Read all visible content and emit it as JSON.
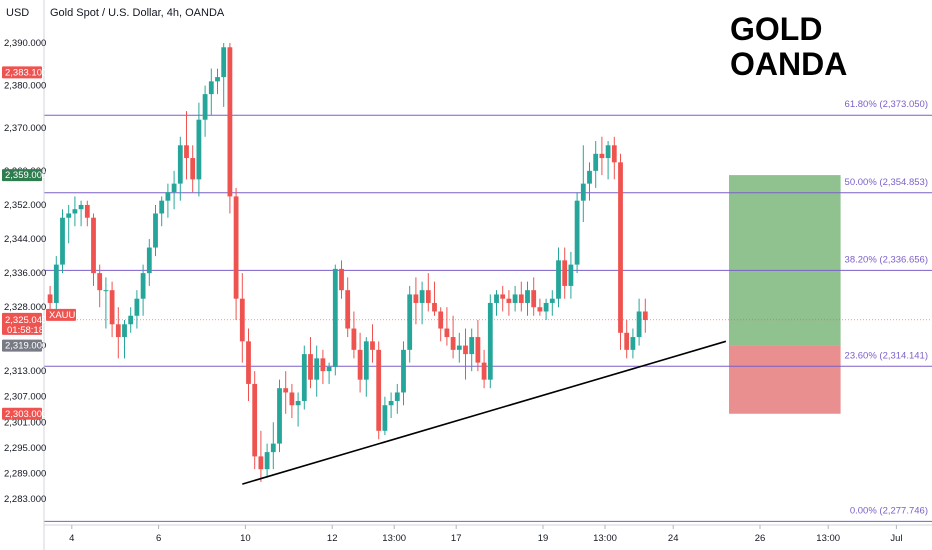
{
  "header": {
    "currency": "USD",
    "title": "Gold Spot / U.S. Dollar, 4h, OANDA"
  },
  "watermark": {
    "line1": "GOLD",
    "line2": "OANDA"
  },
  "colors": {
    "up": "#26a69a",
    "down": "#ef5350",
    "fib": "#7b5fc9",
    "profit_zone": "#8fc28f",
    "loss_zone": "#e98f8f",
    "trendline": "#000000"
  },
  "chart_data": {
    "type": "candlestick",
    "title": "Gold Spot / U.S. Dollar, 4h, OANDA",
    "ylim": [
      2278,
      2392
    ],
    "x_ticks": [
      {
        "label": "4",
        "index": 4
      },
      {
        "label": "6",
        "index": 18
      },
      {
        "label": "10",
        "index": 32
      },
      {
        "label": "12",
        "index": 46
      },
      {
        "label": "13:00",
        "index": 56
      },
      {
        "label": "17",
        "index": 66
      },
      {
        "label": "19",
        "index": 80
      },
      {
        "label": "13:00",
        "index": 90
      },
      {
        "label": "24",
        "index": 101
      },
      {
        "label": "26",
        "index": 115
      },
      {
        "label": "13:00",
        "index": 126
      },
      {
        "label": "Jul",
        "index": 137
      }
    ],
    "y_ticks": [
      {
        "label": "2,390.000",
        "value": 2390
      },
      {
        "label": "2,380.000",
        "value": 2380
      },
      {
        "label": "2,370.000",
        "value": 2370
      },
      {
        "label": "2,360.000",
        "value": 2360
      },
      {
        "label": "2,352.000",
        "value": 2352
      },
      {
        "label": "2,344.000",
        "value": 2344
      },
      {
        "label": "2,336.000",
        "value": 2336
      },
      {
        "label": "2,328.000",
        "value": 2328
      },
      {
        "label": "2,319.000",
        "value": 2319
      },
      {
        "label": "2,313.000",
        "value": 2313
      },
      {
        "label": "2,307.000",
        "value": 2307
      },
      {
        "label": "2,301.000",
        "value": 2301
      },
      {
        "label": "2,295.000",
        "value": 2295
      },
      {
        "label": "2,289.000",
        "value": 2289
      },
      {
        "label": "2,283.000",
        "value": 2283
      }
    ],
    "price_badges": [
      {
        "name": "high-marker",
        "label": "2,383.100",
        "value": 2383.1,
        "color": "#ef5350"
      },
      {
        "name": "target-marker",
        "label": "2,359.000",
        "value": 2359,
        "color": "#2e7d4f"
      },
      {
        "name": "current-price",
        "label": "2,325.045",
        "label2": "01:58:18",
        "value": 2325.045,
        "color": "#ef5350"
      },
      {
        "name": "entry-marker",
        "label": "2,319.000",
        "value": 2319,
        "color": "#787b86"
      },
      {
        "name": "stop-marker",
        "label": "2,303.000",
        "value": 2303,
        "color": "#ef5350"
      }
    ],
    "symbol_tag": "XAUUSD",
    "fib_levels": [
      {
        "label": "61.80% (2,373.050)",
        "value": 2373.05
      },
      {
        "label": "50.00% (2,354.853)",
        "value": 2354.853
      },
      {
        "label": "38.20% (2,336.656)",
        "value": 2336.656
      },
      {
        "label": "23.60% (2,314.141)",
        "value": 2314.141
      },
      {
        "label": "0.00% (2,277.746)",
        "value": 2277.746
      }
    ],
    "trendline": {
      "from": {
        "index": 31.5,
        "value": 2286.5
      },
      "to": {
        "index": 109.5,
        "value": 2320
      }
    },
    "position": {
      "start_index": 110,
      "end_index": 128,
      "entry": 2319,
      "target": 2359,
      "stop": 2303
    },
    "candles": [
      [
        2331,
        2333,
        2326,
        2329
      ],
      [
        2329,
        2340,
        2327,
        2338
      ],
      [
        2338,
        2351,
        2336,
        2349
      ],
      [
        2349,
        2352,
        2343,
        2350
      ],
      [
        2350,
        2354,
        2347,
        2351
      ],
      [
        2351,
        2353,
        2347,
        2352
      ],
      [
        2352,
        2353,
        2347,
        2349
      ],
      [
        2349,
        2350,
        2333,
        2336
      ],
      [
        2336,
        2338,
        2328,
        2332
      ],
      [
        2332,
        2335,
        2323,
        2332
      ],
      [
        2332,
        2334,
        2321,
        2324
      ],
      [
        2324,
        2328,
        2316,
        2321
      ],
      [
        2321,
        2325,
        2316,
        2324
      ],
      [
        2324,
        2328,
        2322,
        2326
      ],
      [
        2326,
        2332,
        2323,
        2330
      ],
      [
        2330,
        2338,
        2326,
        2336
      ],
      [
        2336,
        2344,
        2333,
        2342
      ],
      [
        2342,
        2352,
        2340,
        2350
      ],
      [
        2350,
        2354,
        2347,
        2353
      ],
      [
        2353,
        2357,
        2349,
        2355
      ],
      [
        2355,
        2360,
        2351,
        2357
      ],
      [
        2357,
        2368,
        2353,
        2366
      ],
      [
        2366,
        2374,
        2358,
        2363
      ],
      [
        2363,
        2366,
        2355,
        2358
      ],
      [
        2358,
        2376,
        2354,
        2372
      ],
      [
        2372,
        2380,
        2368,
        2378
      ],
      [
        2378,
        2384,
        2373,
        2381
      ],
      [
        2381,
        2384,
        2378,
        2382
      ],
      [
        2382,
        2390,
        2375,
        2389
      ],
      [
        2389,
        2390,
        2350,
        2354
      ],
      [
        2354,
        2356,
        2325,
        2330
      ],
      [
        2330,
        2336,
        2315,
        2320
      ],
      [
        2320,
        2323,
        2306,
        2310
      ],
      [
        2310,
        2313,
        2290,
        2293
      ],
      [
        2293,
        2299,
        2287,
        2290
      ],
      [
        2290,
        2296,
        2288,
        2294
      ],
      [
        2294,
        2301,
        2290,
        2296
      ],
      [
        2296,
        2311,
        2294,
        2309
      ],
      [
        2309,
        2313,
        2303,
        2308
      ],
      [
        2308,
        2310,
        2302,
        2305
      ],
      [
        2305,
        2308,
        2300,
        2306
      ],
      [
        2306,
        2319,
        2304,
        2317
      ],
      [
        2317,
        2321,
        2309,
        2311
      ],
      [
        2311,
        2319,
        2307,
        2316
      ],
      [
        2316,
        2318,
        2310,
        2313
      ],
      [
        2313,
        2315,
        2310,
        2314
      ],
      [
        2314,
        2338,
        2312,
        2337
      ],
      [
        2337,
        2339,
        2330,
        2332
      ],
      [
        2332,
        2335,
        2321,
        2323
      ],
      [
        2323,
        2327,
        2316,
        2318
      ],
      [
        2318,
        2322,
        2308,
        2311
      ],
      [
        2311,
        2321,
        2307,
        2320
      ],
      [
        2320,
        2324,
        2315,
        2318
      ],
      [
        2318,
        2320,
        2297,
        2299
      ],
      [
        2299,
        2307,
        2298,
        2305
      ],
      [
        2305,
        2308,
        2302,
        2306
      ],
      [
        2306,
        2310,
        2303,
        2308
      ],
      [
        2308,
        2320,
        2305,
        2318
      ],
      [
        2318,
        2333,
        2315,
        2331
      ],
      [
        2331,
        2335,
        2324,
        2329
      ],
      [
        2329,
        2334,
        2324,
        2332
      ],
      [
        2332,
        2336,
        2327,
        2329
      ],
      [
        2329,
        2334,
        2326,
        2327
      ],
      [
        2327,
        2328,
        2320,
        2323
      ],
      [
        2323,
        2328,
        2319,
        2321
      ],
      [
        2321,
        2326,
        2316,
        2318
      ],
      [
        2318,
        2322,
        2315,
        2319
      ],
      [
        2319,
        2323,
        2311,
        2317
      ],
      [
        2317,
        2323,
        2313,
        2321
      ],
      [
        2321,
        2325,
        2313,
        2315
      ],
      [
        2315,
        2318,
        2309,
        2311
      ],
      [
        2311,
        2331,
        2309,
        2329
      ],
      [
        2329,
        2332,
        2326,
        2331
      ],
      [
        2331,
        2333,
        2327,
        2330
      ],
      [
        2330,
        2332,
        2326,
        2329
      ],
      [
        2329,
        2333,
        2327,
        2331
      ],
      [
        2331,
        2334,
        2327,
        2329
      ],
      [
        2329,
        2334,
        2326,
        2332
      ],
      [
        2332,
        2335,
        2326,
        2328
      ],
      [
        2328,
        2330,
        2326,
        2327
      ],
      [
        2327,
        2330,
        2325,
        2329
      ],
      [
        2329,
        2332,
        2326,
        2330
      ],
      [
        2330,
        2342,
        2328,
        2339
      ],
      [
        2339,
        2342,
        2330,
        2333
      ],
      [
        2333,
        2341,
        2330,
        2338
      ],
      [
        2338,
        2355,
        2336,
        2353
      ],
      [
        2353,
        2366,
        2348,
        2357
      ],
      [
        2357,
        2362,
        2353,
        2360
      ],
      [
        2360,
        2367,
        2356,
        2364
      ],
      [
        2364,
        2368,
        2359,
        2363
      ],
      [
        2363,
        2367,
        2358,
        2366
      ],
      [
        2366,
        2368,
        2358,
        2362
      ],
      [
        2362,
        2364,
        2318,
        2322
      ],
      [
        2322,
        2325,
        2316,
        2318
      ],
      [
        2318,
        2323,
        2316,
        2321
      ],
      [
        2321,
        2330,
        2319,
        2327
      ],
      [
        2327,
        2330,
        2322,
        2325
      ]
    ]
  }
}
